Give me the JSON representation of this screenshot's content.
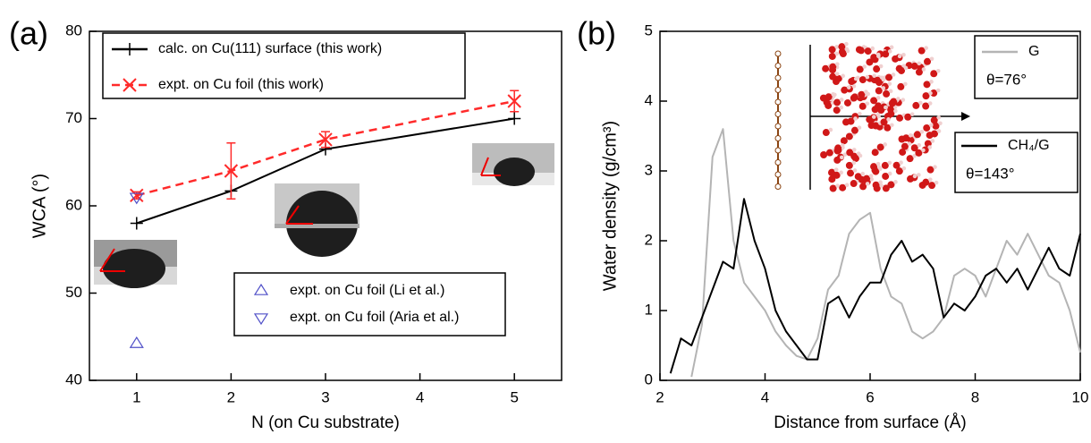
{
  "chart_data": [
    {
      "type": "line",
      "label": "(a)",
      "xlabel": "N (on Cu substrate)",
      "ylabel": "WCA (°)",
      "xlim": [
        0.5,
        5.5
      ],
      "xticks": [
        1,
        2,
        3,
        4,
        5
      ],
      "ylim": [
        40,
        80
      ],
      "yticks": [
        40,
        50,
        60,
        70,
        80
      ],
      "series": [
        {
          "name": "calc. on Cu(111) surface (this work)",
          "color": "#000000",
          "marker": "plus",
          "dash": false,
          "line": true,
          "x": [
            1,
            2,
            3,
            5
          ],
          "values": [
            58,
            61.7,
            66.5,
            70
          ]
        },
        {
          "name": "expt. on Cu foil (this work)",
          "color": "#ff2a2a",
          "marker": "cross",
          "dash": true,
          "line": true,
          "x": [
            1,
            2,
            3,
            5
          ],
          "values": [
            61.2,
            64,
            67.6,
            72
          ],
          "errors": [
            0.4,
            3.2,
            0.9,
            1.2
          ]
        },
        {
          "name": "expt. on Cu foil (Li et al.)",
          "color": "#5050c8",
          "marker": "triangle-up",
          "dash": false,
          "line": false,
          "x": [
            1
          ],
          "values": [
            44.2
          ]
        },
        {
          "name": "expt. on Cu foil (Aria et al.)",
          "color": "#5050c8",
          "marker": "triangle-down",
          "dash": false,
          "line": false,
          "x": [
            1
          ],
          "values": [
            61
          ]
        }
      ]
    },
    {
      "type": "line",
      "label": "(b)",
      "xlabel": "Distance from surface (Å)",
      "ylabel": "Water density (g/cm³)",
      "xlim": [
        2,
        10
      ],
      "xticks": [
        2,
        4,
        6,
        8,
        10
      ],
      "ylim": [
        0,
        5
      ],
      "yticks": [
        0,
        1,
        2,
        3,
        4,
        5
      ],
      "x": [
        2.0,
        2.2,
        2.4,
        2.6,
        2.8,
        3.0,
        3.2,
        3.4,
        3.6,
        3.8,
        4.0,
        4.2,
        4.4,
        4.6,
        4.8,
        5.0,
        5.2,
        5.4,
        5.6,
        5.8,
        6.0,
        6.2,
        6.4,
        6.6,
        6.8,
        7.0,
        7.2,
        7.4,
        7.6,
        7.8,
        8.0,
        8.2,
        8.4,
        8.6,
        8.8,
        9.0,
        9.2,
        9.4,
        9.6,
        9.8,
        10.0
      ],
      "series": [
        {
          "name": "G",
          "note": "θ=76°",
          "color": "#b4b4b4",
          "line": true,
          "values": [
            null,
            null,
            null,
            0.05,
            0.8,
            3.2,
            3.6,
            2.0,
            1.4,
            1.2,
            1.0,
            0.7,
            0.5,
            0.35,
            0.3,
            0.6,
            1.3,
            1.5,
            2.1,
            2.3,
            2.4,
            1.6,
            1.2,
            1.1,
            0.7,
            0.6,
            0.7,
            0.9,
            1.5,
            1.6,
            1.5,
            1.2,
            1.6,
            2.0,
            1.8,
            2.1,
            1.8,
            1.5,
            1.4,
            1.0,
            0.4
          ]
        },
        {
          "name": "CH₄/G",
          "note": "θ=143°",
          "color": "#000000",
          "line": true,
          "values": [
            null,
            0.1,
            0.6,
            0.5,
            0.9,
            1.3,
            1.7,
            1.6,
            2.6,
            2.0,
            1.6,
            1.0,
            0.7,
            0.5,
            0.3,
            0.3,
            1.1,
            1.2,
            0.9,
            1.2,
            1.4,
            1.4,
            1.8,
            2.0,
            1.7,
            1.8,
            1.6,
            0.9,
            1.1,
            1.0,
            1.2,
            1.5,
            1.6,
            1.4,
            1.6,
            1.3,
            1.6,
            1.9,
            1.6,
            1.5,
            2.1
          ]
        }
      ]
    }
  ]
}
